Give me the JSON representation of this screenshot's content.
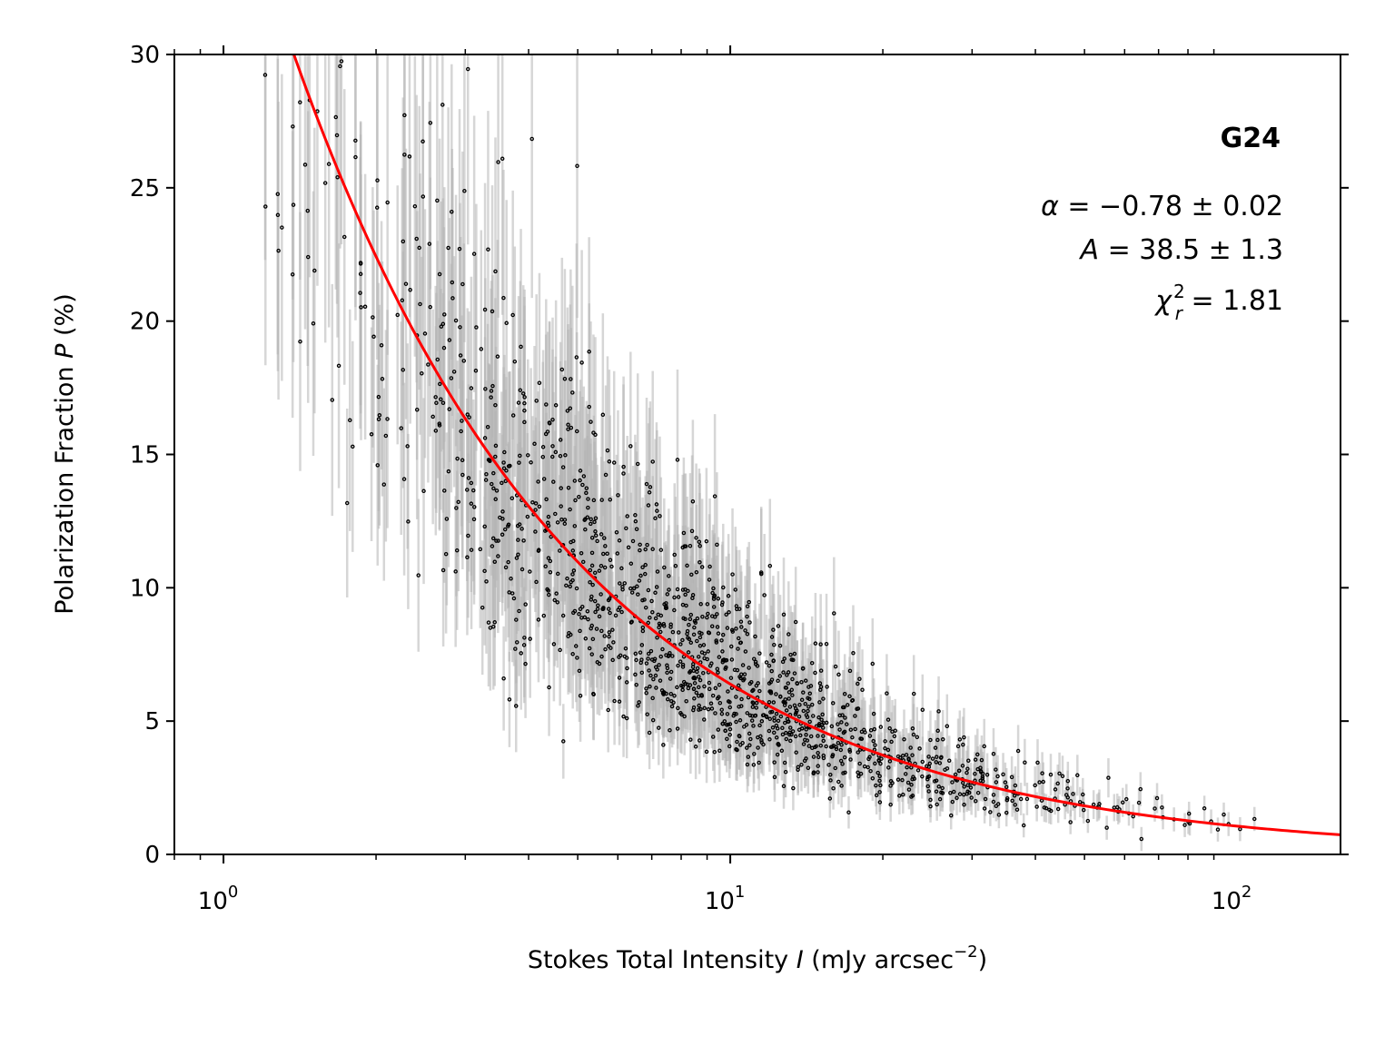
{
  "chart_data": {
    "type": "scatter",
    "xscale": "log",
    "xlim": [
      0.8,
      160
    ],
    "ylim": [
      0,
      30
    ],
    "xlabel": "Stokes Total Intensity I (mJy arcsec−2)",
    "xlabel_parts": {
      "pre": "Stokes Total Intensity ",
      "var": "I",
      "mid": " (mJy arcsec",
      "sup": "−2",
      "post": ")"
    },
    "ylabel": "Polarization Fraction P (%)",
    "ylabel_parts": {
      "pre": "Polarization Fraction ",
      "var": "P",
      "post": " (%)"
    },
    "yticks": [
      {
        "value": 0,
        "label": "0"
      },
      {
        "value": 5,
        "label": "5"
      },
      {
        "value": 10,
        "label": "10"
      },
      {
        "value": 15,
        "label": "15"
      },
      {
        "value": 20,
        "label": "20"
      },
      {
        "value": 25,
        "label": "25"
      },
      {
        "value": 30,
        "label": "30"
      }
    ],
    "xticks": [
      {
        "value": 1,
        "base": "10",
        "exp": "0"
      },
      {
        "value": 10,
        "base": "10",
        "exp": "1"
      },
      {
        "value": 100,
        "base": "10",
        "exp": "2"
      }
    ],
    "fit": {
      "name": "power-law fit",
      "model": "P = A * I^alpha",
      "alpha": -0.78,
      "A": 38.5,
      "color": "#ff0000"
    },
    "points_color": "#000000",
    "errorbar_color": "#b4b4b4",
    "points_note": "~1500 points; approximated via generated sample",
    "annotation": {
      "name": "G24",
      "alpha_text": "α = −0.78 ± 0.02",
      "A_text": "A = 38.5 ± 1.3",
      "chi_text": "χr2 = 1.81",
      "alpha_parts": {
        "sym": "α",
        "rest": " = −0.78 ± 0.02"
      },
      "A_parts": {
        "sym": "A",
        "rest": " = 38.5 ± 1.3"
      },
      "chi_parts": {
        "sym": "χ",
        "sub": "r",
        "sup": "2",
        "rest": " = 1.81"
      }
    }
  }
}
